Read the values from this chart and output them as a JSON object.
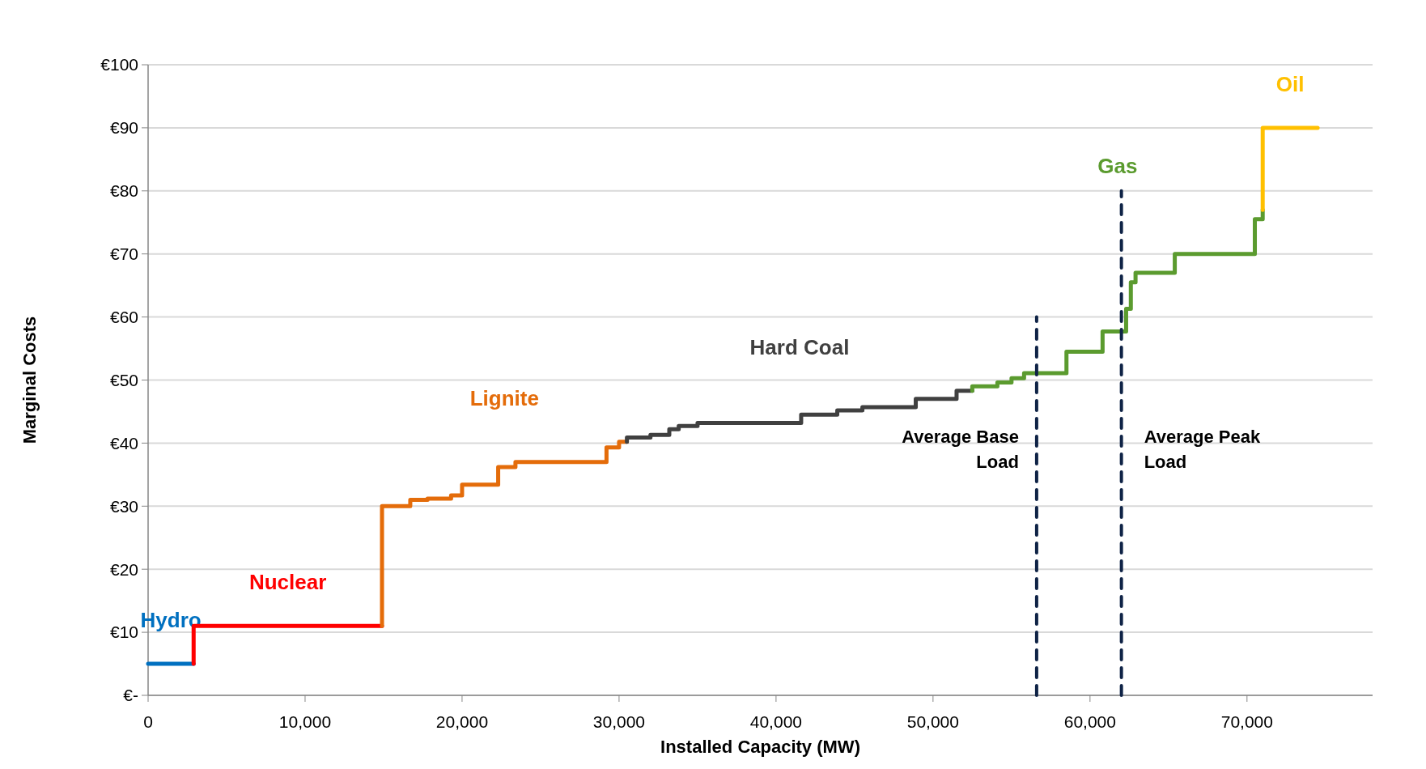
{
  "chart_data": {
    "type": "step",
    "xlabel": "Installed Capacity (MW)",
    "ylabel": "Marginal Costs",
    "xlim": [
      0,
      78000
    ],
    "xticks": [
      0,
      {
        "value": 10000,
        "label": "10,000"
      },
      {
        "value": 20000,
        "label": "20,000"
      },
      {
        "value": 30000,
        "label": "30,000"
      },
      {
        "value": 40000,
        "label": "40,000"
      },
      {
        "value": 50000,
        "label": "50,000"
      },
      {
        "value": 60000,
        "label": "60,000"
      },
      {
        "value": 70000,
        "label": "70,000"
      }
    ],
    "ylim": [
      0,
      100
    ],
    "yticks": [
      {
        "value": 0,
        "label": "€-"
      },
      {
        "value": 10,
        "label": "€10"
      },
      {
        "value": 20,
        "label": "€20"
      },
      {
        "value": 30,
        "label": "€30"
      },
      {
        "value": 40,
        "label": "€40"
      },
      {
        "value": 50,
        "label": "€50"
      },
      {
        "value": 60,
        "label": "€60"
      },
      {
        "value": 70,
        "label": "€70"
      },
      {
        "value": 80,
        "label": "€80"
      },
      {
        "value": 90,
        "label": "€90"
      },
      {
        "value": 100,
        "label": "€100"
      }
    ],
    "grid": "y",
    "marker": "none",
    "series": [
      {
        "name": "Hydro",
        "color": "#0070c0",
        "x": [
          0,
          2900
        ],
        "values": [
          5,
          5
        ]
      },
      {
        "name": "Nuclear",
        "color": "#ff0000",
        "x": [
          2900,
          2900,
          14900
        ],
        "values": [
          5,
          11,
          11
        ]
      },
      {
        "name": "Lignite",
        "color": "#e46c0a",
        "x": [
          14900,
          14900,
          16700,
          17800,
          19300,
          20000,
          22300,
          23400,
          29200,
          30000,
          30500
        ],
        "values": [
          11,
          30,
          31,
          31.2,
          31.7,
          33.4,
          36.2,
          37,
          39.3,
          40.2,
          40.2
        ]
      },
      {
        "name": "Hard Coal",
        "color": "#404040",
        "x": [
          30500,
          30500,
          32000,
          33200,
          33800,
          35000,
          41600,
          43900,
          45500,
          48900,
          51500,
          52500
        ],
        "values": [
          40.2,
          40.9,
          41.3,
          42.2,
          42.7,
          43.2,
          44.5,
          45.2,
          45.7,
          47,
          48.3,
          48.3
        ]
      },
      {
        "name": "Gas",
        "color": "#5b9b2f",
        "x": [
          52500,
          52500,
          54100,
          55000,
          55800,
          58500,
          60800,
          62300,
          62600,
          62900,
          65400,
          70500,
          71000
        ],
        "values": [
          48.3,
          49,
          49.6,
          50.3,
          51.1,
          54.5,
          57.7,
          61.3,
          65.5,
          67,
          70,
          75.5,
          77
        ]
      },
      {
        "name": "Oil",
        "color": "#ffc000",
        "x": [
          71000,
          71000,
          74500
        ],
        "values": [
          77,
          90,
          90
        ]
      },
      {
        "type": "line",
        "color": "#0f2346",
        "line_style": "dashed",
        "x": [
          56600,
          56600
        ],
        "values": [
          0,
          60
        ]
      },
      {
        "type": "line",
        "color": "#0f2346",
        "line_style": "dashed",
        "x": [
          62000,
          62000
        ],
        "values": [
          0,
          80
        ]
      }
    ],
    "annotations": [
      {
        "text": "Average Base Load",
        "x": 56600,
        "y": 40
      },
      {
        "text": "Average Peak Load",
        "x": 62000,
        "y": 40
      }
    ]
  }
}
